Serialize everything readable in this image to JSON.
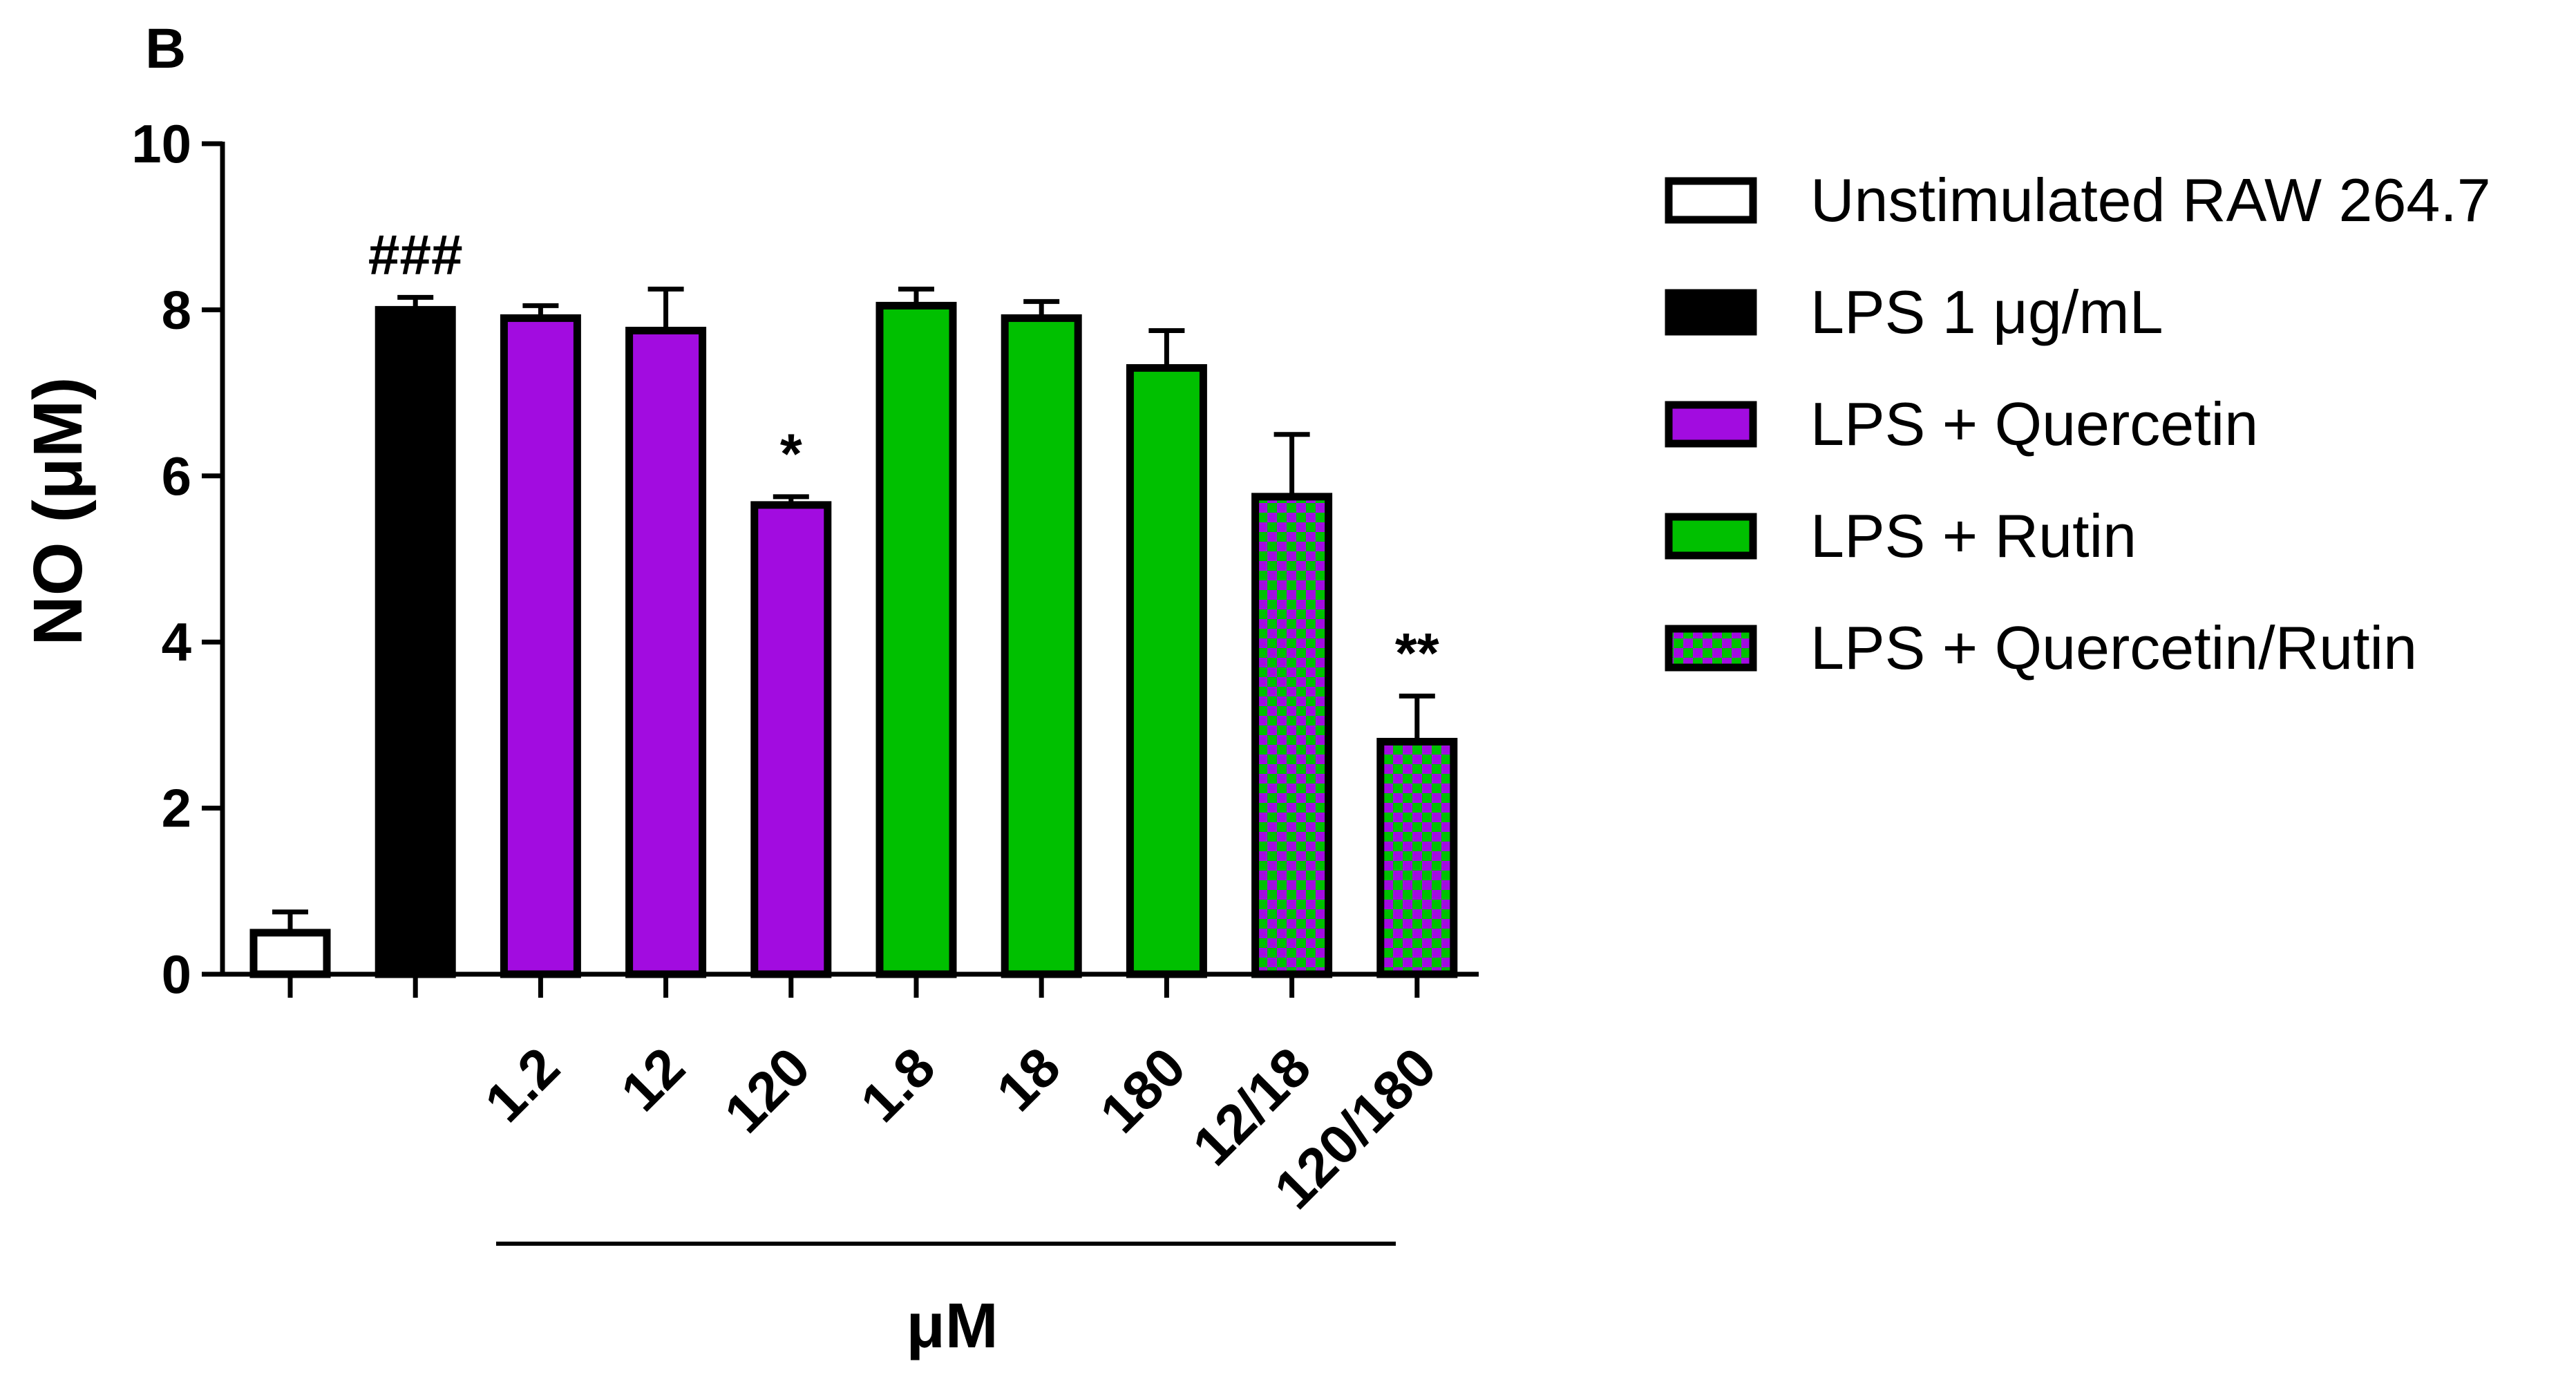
{
  "panel_label": "B",
  "colors": {
    "unstimulated": "#ffffff",
    "lps": "#000000",
    "quercetin": "#a20ce0",
    "rutin": "#00c000",
    "checker_a": "#a20ce0",
    "checker_b": "#00c000",
    "stroke": "#000000"
  },
  "chart_data": {
    "type": "bar",
    "title": "",
    "ylabel": "NO (μM)",
    "xlabel": "μM",
    "ylim": [
      0,
      10
    ],
    "yticks": [
      "0",
      "2",
      "4",
      "6",
      "8",
      "10"
    ],
    "categories": [
      "",
      "",
      "1.2",
      "12",
      "120",
      "1.8",
      "18",
      "180",
      "12/18",
      "120/180"
    ],
    "values": [
      0.5,
      8.0,
      7.9,
      7.75,
      5.65,
      8.05,
      7.9,
      7.3,
      5.75,
      2.8
    ],
    "errors": [
      0.25,
      0.15,
      0.15,
      0.5,
      0.1,
      0.2,
      0.2,
      0.45,
      0.75,
      0.55
    ],
    "groups": [
      "Unstimulated RAW 264.7",
      "LPS 1 μg/mL",
      "LPS + Quercetin",
      "LPS + Quercetin",
      "LPS + Quercetin",
      "LPS + Rutin",
      "LPS + Rutin",
      "LPS + Rutin",
      "LPS + Quercetin/Rutin",
      "LPS + Quercetin/Rutin"
    ],
    "annotations": [
      "",
      "###",
      "",
      "",
      "*",
      "",
      "",
      "",
      "",
      "**"
    ],
    "legend": {
      "position": "right",
      "entries": [
        "Unstimulated RAW 264.7",
        "LPS 1 μg/mL",
        "LPS + Quercetin",
        "LPS + Rutin",
        "LPS + Quercetin/Rutin"
      ]
    }
  }
}
